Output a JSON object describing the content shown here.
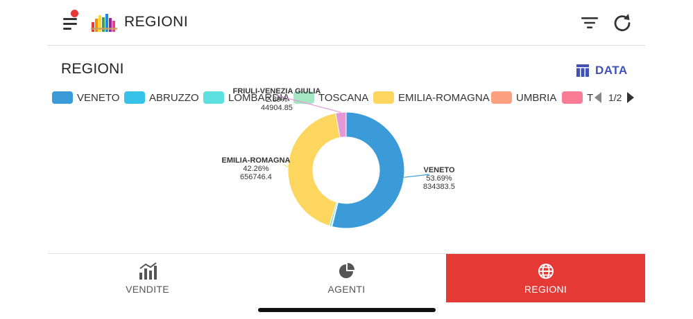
{
  "header": {
    "title": "REGIONI",
    "menu_icon": "menu-icon",
    "logo_icon": "bar-chart-logo-icon",
    "filter_icon": "filter-icon",
    "refresh_icon": "refresh-icon"
  },
  "card": {
    "title": "REGIONI",
    "data_button_label": "DATA",
    "data_icon": "table-icon"
  },
  "legend": {
    "items": [
      {
        "label": "VENETO",
        "color": "#3b9bd9"
      },
      {
        "label": "ABRUZZO",
        "color": "#35c3ea"
      },
      {
        "label": "LOMBARDIA",
        "color": "#5fe0e0"
      },
      {
        "label": "TOSCANA",
        "color": "#a5e6c3"
      },
      {
        "label": "EMILIA-ROMAGNA",
        "color": "#fcd65f"
      },
      {
        "label": "UMBRIA",
        "color": "#fca080"
      },
      {
        "label": "T",
        "color": "#fa7b96"
      }
    ],
    "page": "1/2"
  },
  "chart_data": {
    "type": "pie",
    "variant": "donut",
    "legend_position": "top",
    "slices": [
      {
        "label": "VENETO",
        "percent": "53.69%",
        "value": "834383.5",
        "number": 834383.5,
        "color": "#3b9bd9"
      },
      {
        "label": "ABRUZZO",
        "percent": "",
        "value": "",
        "number": 3450,
        "color": "#35c3ea"
      },
      {
        "label": "LOMBARDIA",
        "percent": "",
        "value": "",
        "number": 7800,
        "color": "#5fe0e0"
      },
      {
        "label": "EMILIA-ROMAGNA",
        "percent": "42.26%",
        "value": "656746.4",
        "number": 656746.4,
        "color": "#fcd65f"
      },
      {
        "label": "FRIULI-VENEZIA GIULIA",
        "percent": "2.89%",
        "value": "44904.85",
        "number": 44904.85,
        "color": "#e598d6"
      }
    ]
  },
  "bottom_nav": {
    "items": [
      {
        "label": "VENDITE",
        "icon": "bar-chart-icon"
      },
      {
        "label": "AGENTI",
        "icon": "pie-chart-icon"
      },
      {
        "label": "REGIONI",
        "icon": "globe-icon",
        "active": true
      }
    ]
  }
}
